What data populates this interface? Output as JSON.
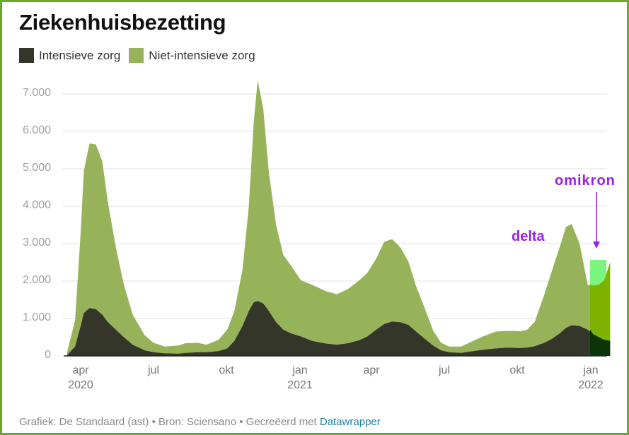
{
  "title": "Ziekenhuisbezetting",
  "legend": [
    {
      "label": "Intensieve zorg",
      "color": "#333628"
    },
    {
      "label": "Niet-intensieve zorg",
      "color": "#97b35a"
    }
  ],
  "annotations": {
    "delta": "delta",
    "omikron": "omikron",
    "omikron_highlight_color": "#7cf57c",
    "omikron_total_color": "#7db300",
    "omikron_icu_color": "#0d3308",
    "annotation_color": "#9a1ee6"
  },
  "footer": {
    "text": "Grafiek: De Standaard (ast) • Bron: Sciensano • Gecreëerd met ",
    "link": "Datawrapper"
  },
  "chart_data": {
    "type": "area",
    "stacked": true,
    "title": "Ziekenhuisbezetting",
    "xlabel": "",
    "ylabel": "",
    "ylim": [
      0,
      7000
    ],
    "yticks": [
      "0",
      "1.000",
      "2.000",
      "3.000",
      "4.000",
      "5.000",
      "6.000",
      "7.000"
    ],
    "xticks": [
      {
        "label": "apr",
        "sub": "2020"
      },
      {
        "label": "jul",
        "sub": ""
      },
      {
        "label": "okt",
        "sub": ""
      },
      {
        "label": "jan",
        "sub": "2021"
      },
      {
        "label": "apr",
        "sub": ""
      },
      {
        "label": "jul",
        "sub": ""
      },
      {
        "label": "okt",
        "sub": ""
      },
      {
        "label": "jan",
        "sub": "2022"
      }
    ],
    "grid": true,
    "legend_position": "top-left",
    "x": [
      "2020-03-15",
      "2020-03-25",
      "2020-04-01",
      "2020-04-05",
      "2020-04-12",
      "2020-04-20",
      "2020-04-28",
      "2020-05-05",
      "2020-05-15",
      "2020-05-25",
      "2020-06-05",
      "2020-06-20",
      "2020-07-01",
      "2020-07-15",
      "2020-08-01",
      "2020-08-10",
      "2020-08-25",
      "2020-09-05",
      "2020-09-20",
      "2020-10-01",
      "2020-10-10",
      "2020-10-20",
      "2020-10-28",
      "2020-11-03",
      "2020-11-08",
      "2020-11-15",
      "2020-11-22",
      "2020-12-01",
      "2020-12-10",
      "2020-12-20",
      "2021-01-01",
      "2021-01-15",
      "2021-02-01",
      "2021-02-15",
      "2021-03-01",
      "2021-03-15",
      "2021-03-25",
      "2021-04-05",
      "2021-04-15",
      "2021-04-25",
      "2021-05-05",
      "2021-05-15",
      "2021-05-25",
      "2021-06-05",
      "2021-06-15",
      "2021-06-25",
      "2021-07-05",
      "2021-07-20",
      "2021-08-01",
      "2021-08-15",
      "2021-09-01",
      "2021-09-15",
      "2021-10-01",
      "2021-10-10",
      "2021-10-20",
      "2021-11-01",
      "2021-11-10",
      "2021-11-20",
      "2021-11-28",
      "2021-12-05",
      "2021-12-15",
      "2021-12-25",
      "2022-01-01",
      "2022-01-08",
      "2022-01-15",
      "2022-01-22"
    ],
    "series": [
      {
        "name": "Intensieve zorg",
        "values": [
          20,
          250,
          800,
          1150,
          1280,
          1250,
          1100,
          900,
          700,
          500,
          300,
          150,
          100,
          70,
          60,
          80,
          100,
          100,
          130,
          200,
          400,
          800,
          1200,
          1430,
          1470,
          1400,
          1200,
          900,
          700,
          600,
          520,
          400,
          330,
          300,
          340,
          420,
          520,
          700,
          850,
          920,
          900,
          830,
          650,
          450,
          280,
          150,
          100,
          80,
          120,
          160,
          200,
          220,
          210,
          220,
          260,
          350,
          450,
          600,
          750,
          820,
          800,
          700,
          580,
          500,
          430,
          400
        ]
      },
      {
        "name": "Niet-intensieve zorg",
        "values": [
          80,
          700,
          2500,
          3800,
          4400,
          4400,
          4100,
          3200,
          2200,
          1400,
          800,
          400,
          250,
          180,
          220,
          260,
          250,
          200,
          300,
          500,
          800,
          1500,
          2800,
          4800,
          5900,
          5200,
          3700,
          2600,
          2000,
          1800,
          1500,
          1500,
          1400,
          1350,
          1450,
          1600,
          1700,
          1900,
          2200,
          2200,
          2000,
          1700,
          1200,
          800,
          400,
          200,
          150,
          170,
          250,
          350,
          450,
          450,
          450,
          470,
          650,
          1300,
          1800,
          2300,
          2700,
          2700,
          2200,
          1200,
          1300,
          1400,
          1600,
          2100
        ]
      }
    ]
  }
}
